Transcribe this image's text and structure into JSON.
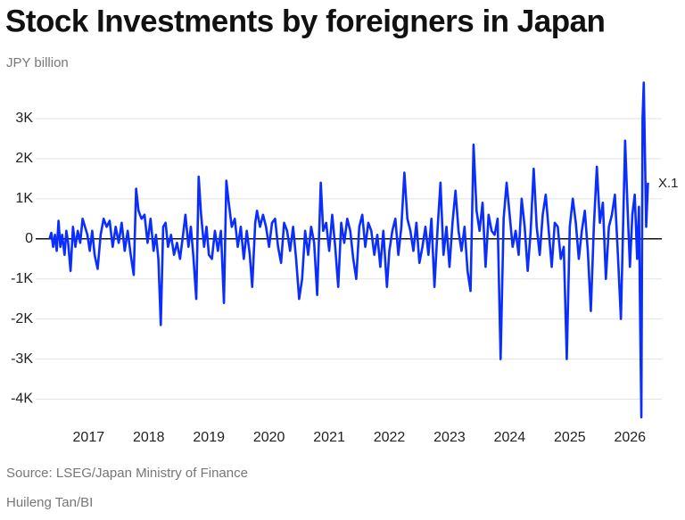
{
  "chart_data": {
    "type": "line",
    "title": "Stock Investments by foreigners in Japan",
    "subtitle": "JPY billion",
    "source": "Source: LSEG/Japan Ministry of Finance",
    "credit": "Huileng Tan/BI",
    "annotation": "X.1",
    "x": [
      2016.35,
      2016.38,
      2016.41,
      2016.44,
      2016.47,
      2016.5,
      2016.53,
      2016.56,
      2016.6,
      2016.63,
      2016.66,
      2016.7,
      2016.74,
      2016.78,
      2016.82,
      2016.86,
      2016.9,
      2016.94,
      2016.98,
      2017.02,
      2017.06,
      2017.1,
      2017.15,
      2017.2,
      2017.25,
      2017.3,
      2017.35,
      2017.4,
      2017.45,
      2017.5,
      2017.55,
      2017.6,
      2017.65,
      2017.7,
      2017.75,
      2017.79,
      2017.83,
      2017.88,
      2017.93,
      2017.98,
      2018.03,
      2018.08,
      2018.12,
      2018.16,
      2018.2,
      2018.24,
      2018.28,
      2018.32,
      2018.37,
      2018.42,
      2018.47,
      2018.52,
      2018.57,
      2018.61,
      2018.66,
      2018.7,
      2018.74,
      2018.79,
      2018.83,
      2018.87,
      2018.92,
      2018.96,
      2019.0,
      2019.05,
      2019.1,
      2019.15,
      2019.2,
      2019.25,
      2019.29,
      2019.33,
      2019.38,
      2019.43,
      2019.48,
      2019.53,
      2019.58,
      2019.63,
      2019.68,
      2019.72,
      2019.77,
      2019.8,
      2019.85,
      2019.9,
      2019.95,
      2020.0,
      2020.05,
      2020.1,
      2020.15,
      2020.2,
      2020.25,
      2020.3,
      2020.35,
      2020.4,
      2020.45,
      2020.5,
      2020.55,
      2020.6,
      2020.65,
      2020.7,
      2020.75,
      2020.8,
      2020.86,
      2020.9,
      2020.95,
      2021.0,
      2021.05,
      2021.1,
      2021.15,
      2021.2,
      2021.25,
      2021.3,
      2021.35,
      2021.4,
      2021.45,
      2021.5,
      2021.55,
      2021.6,
      2021.65,
      2021.7,
      2021.75,
      2021.8,
      2021.85,
      2021.9,
      2021.96,
      2022.0,
      2022.05,
      2022.1,
      2022.15,
      2022.2,
      2022.25,
      2022.3,
      2022.35,
      2022.4,
      2022.45,
      2022.5,
      2022.55,
      2022.6,
      2022.65,
      2022.7,
      2022.75,
      2022.8,
      2022.85,
      2022.9,
      2022.95,
      2023.0,
      2023.05,
      2023.1,
      2023.15,
      2023.2,
      2023.25,
      2023.3,
      2023.35,
      2023.4,
      2023.45,
      2023.5,
      2023.55,
      2023.6,
      2023.65,
      2023.7,
      2023.75,
      2023.8,
      2023.85,
      2023.9,
      2023.95,
      2024.0,
      2024.05,
      2024.1,
      2024.15,
      2024.2,
      2024.25,
      2024.3,
      2024.35,
      2024.4,
      2024.45,
      2024.5,
      2024.55,
      2024.6,
      2024.65,
      2024.7,
      2024.75,
      2024.8,
      2024.85,
      2024.9,
      2024.95,
      2025.0,
      2025.05,
      2025.1,
      2025.15,
      2025.2,
      2025.25,
      2025.3,
      2025.35,
      2025.4,
      2025.45,
      2025.5,
      2025.55,
      2025.6,
      2025.65,
      2025.7,
      2025.75,
      2025.8,
      2025.85,
      2025.92,
      2025.96,
      2026.0,
      2026.04,
      2026.08,
      2026.12,
      2026.15,
      2026.17,
      2026.19,
      2026.21,
      2026.23,
      2026.27,
      2026.3
    ],
    "series": [
      {
        "name": "Stock investments",
        "color": "#0a2eff",
        "values": [
          0,
          150,
          -200,
          100,
          -300,
          450,
          -200,
          100,
          -400,
          200,
          -100,
          -800,
          300,
          -200,
          200,
          -100,
          500,
          300,
          100,
          -300,
          200,
          -400,
          -750,
          100,
          500,
          300,
          450,
          -200,
          300,
          -100,
          400,
          -300,
          200,
          -400,
          -900,
          1250,
          700,
          500,
          600,
          -100,
          500,
          -300,
          100,
          -500,
          -2150,
          300,
          400,
          -200,
          100,
          -400,
          -100,
          -500,
          100,
          600,
          -200,
          300,
          -400,
          -1500,
          1550,
          600,
          -200,
          300,
          -400,
          -500,
          200,
          -300,
          200,
          -1600,
          1450,
          900,
          300,
          500,
          -200,
          300,
          -500,
          200,
          -400,
          -1200,
          400,
          700,
          300,
          600,
          300,
          -200,
          400,
          500,
          -200,
          -600,
          400,
          200,
          -300,
          300,
          -500,
          -1500,
          -1000,
          200,
          -400,
          300,
          -100,
          -1400,
          1400,
          200,
          400,
          -300,
          600,
          -200,
          -1200,
          400,
          -100,
          500,
          200,
          -500,
          -1000,
          300,
          600,
          -200,
          400,
          200,
          -400,
          100,
          -700,
          200,
          -1200,
          -300,
          200,
          500,
          -400,
          300,
          1650,
          500,
          200,
          -300,
          400,
          -600,
          -200,
          300,
          -400,
          500,
          -1200,
          200,
          1400,
          -400,
          300,
          -700,
          400,
          1200,
          200,
          -300,
          300,
          -800,
          -1300,
          2350,
          700,
          200,
          900,
          -700,
          600,
          200,
          100,
          500,
          -3000,
          500,
          1400,
          600,
          -200,
          200,
          -400,
          1000,
          300,
          -800,
          200,
          1750,
          300,
          -400,
          600,
          1100,
          200,
          -700,
          400,
          300,
          -500,
          -200,
          -3000,
          300,
          1000,
          400,
          -500,
          200,
          700,
          -300,
          -1800,
          300,
          1800,
          400,
          900,
          -1000,
          300,
          600,
          1100,
          -400,
          -2000,
          2450,
          800,
          -700,
          600,
          1100,
          -500,
          800,
          -2000,
          -4450,
          3000,
          3900,
          300,
          1400
        ]
      }
    ],
    "xlim": [
      2016.12,
      2026.53
    ],
    "xticks": [
      2017,
      2018,
      2019,
      2020,
      2021,
      2022,
      2023,
      2024,
      2025,
      2026
    ],
    "ylim": [
      -4500,
      4000
    ],
    "yticks": [
      {
        "value": -4000,
        "label": "-4K"
      },
      {
        "value": -3000,
        "label": "-3K"
      },
      {
        "value": -2000,
        "label": "-2K"
      },
      {
        "value": -1000,
        "label": "-1K"
      },
      0,
      {
        "value": 1000,
        "label": "1K"
      },
      {
        "value": 2000,
        "label": "2K"
      },
      {
        "value": 3000,
        "label": "3K"
      }
    ],
    "grid": true
  }
}
